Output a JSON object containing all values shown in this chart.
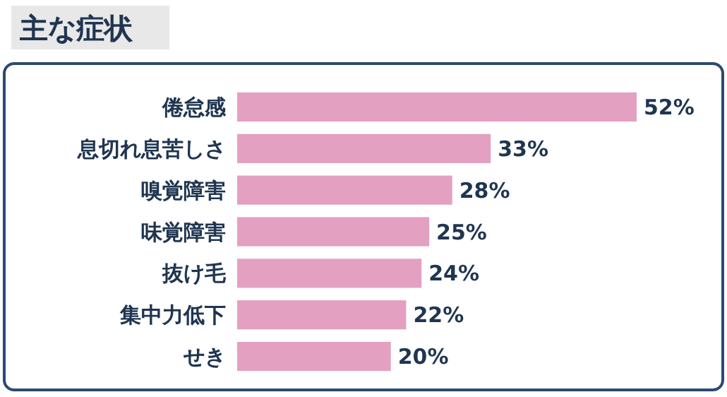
{
  "chart_data": {
    "type": "bar",
    "orientation": "horizontal",
    "title": "主な症状",
    "categories": [
      "倦怠感",
      "息切れ息苦しさ",
      "嗅覚障害",
      "味覚障害",
      "抜け毛",
      "集中力低下",
      "せき"
    ],
    "values": [
      52,
      33,
      28,
      25,
      24,
      22,
      20
    ],
    "value_labels": [
      "52%",
      "33%",
      "28%",
      "25%",
      "24%",
      "22%",
      "20%"
    ],
    "color": "#e4a0c0"
  }
}
